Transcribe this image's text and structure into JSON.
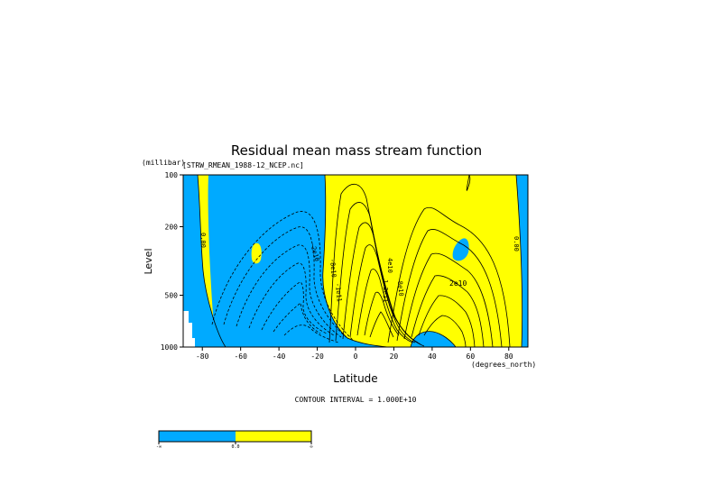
{
  "chart_data": {
    "type": "heatmap",
    "title": "Residual mean mass stream function",
    "dataset_label": "[STRW_RMEAN_1988-12_NCEP.nc]",
    "xlabel": "Latitude",
    "x_units": "(degrees_north)",
    "ylabel": "Level",
    "y_units": "(millibar)",
    "xlim": [
      -90,
      90
    ],
    "ylim": [
      1000,
      100
    ],
    "y_scale": "log",
    "x_ticks": [
      -80,
      -60,
      -40,
      -20,
      0,
      20,
      40,
      60,
      80
    ],
    "x_tick_labels": [
      "-80",
      "-60",
      "-40",
      "-20",
      "0",
      "20",
      "40",
      "60",
      "80"
    ],
    "y_ticks": [
      1000,
      500,
      200,
      100
    ],
    "y_tick_labels": [
      "1000",
      "500",
      "200",
      "100"
    ],
    "contour_interval_label": "CONTOUR INTERVAL = 1.000E+10",
    "contour_interval": 10000000000,
    "fill_levels": [
      0.0
    ],
    "fill_colors": {
      "negative": "#00aaff",
      "positive": "#ffff00"
    },
    "contour_labels": [
      "0.00",
      "-2e10",
      "-8e10",
      "-1e11",
      "4e10",
      "8e10",
      "1.2e11",
      "2e10",
      "0.00"
    ],
    "features": [
      {
        "sign": "negative",
        "region": "southern hemisphere, 20S-60S",
        "extreme_estimate": -100000000000
      },
      {
        "sign": "positive",
        "region": "tropics, 0-30N, upper and mid troposphere",
        "extreme_estimate": 120000000000
      },
      {
        "sign": "positive",
        "region": "northern hemisphere, 30N-60N",
        "extreme_estimate": 20000000000
      }
    ],
    "colorbar": {
      "labels": [
        "-∞",
        "0.0",
        "∞"
      ]
    }
  },
  "colors": {
    "blue": "#00aaff",
    "yellow": "#ffff00",
    "background": "#ffffff",
    "line": "#000000"
  }
}
